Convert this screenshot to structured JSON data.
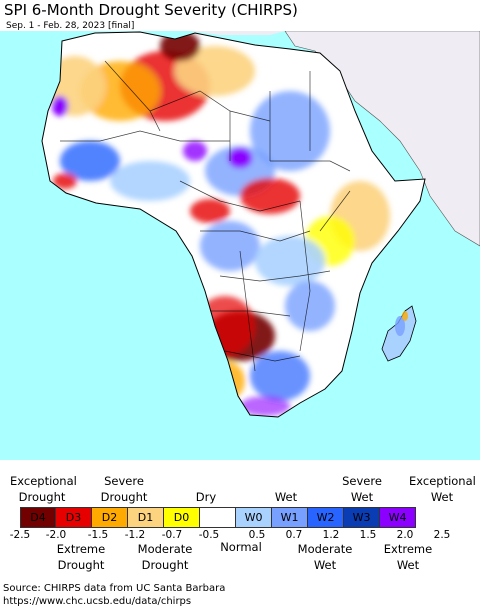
{
  "header": {
    "title": "SPI 6-Month Drought Severity (CHIRPS)",
    "subtitle": "Sep. 1 - Feb. 28, 2023 [final]"
  },
  "map": {
    "region": "Africa",
    "ocean_color": "#aaffff",
    "land_outside_color": "#f0ecf4",
    "no_data_color": "#ffffff"
  },
  "legend": {
    "categories": [
      {
        "code": "D4",
        "color": "#730000"
      },
      {
        "code": "D3",
        "color": "#e60000"
      },
      {
        "code": "D2",
        "color": "#ffaa00"
      },
      {
        "code": "D1",
        "color": "#fcd37f"
      },
      {
        "code": "D0",
        "color": "#ffff00"
      },
      {
        "code": "",
        "color": "#ffffff"
      },
      {
        "code": "W0",
        "color": "#aad2ff"
      },
      {
        "code": "W1",
        "color": "#78a0ff"
      },
      {
        "code": "W2",
        "color": "#2864ff"
      },
      {
        "code": "W3",
        "color": "#0a3cb4"
      },
      {
        "code": "W4",
        "color": "#8c00ff"
      }
    ],
    "top_labels": [
      {
        "line1": "Exceptional",
        "line2": "Drought"
      },
      {
        "line1": "Severe",
        "line2": "Drought"
      },
      {
        "line1": "Dry",
        "line2": ""
      },
      {
        "line1": "Wet",
        "line2": ""
      },
      {
        "line1": "Severe",
        "line2": "Wet"
      },
      {
        "line1": "Exceptional",
        "line2": "Wet"
      }
    ],
    "bottom_labels": [
      {
        "line1": "Extreme",
        "line2": "Drought"
      },
      {
        "line1": "Moderate",
        "line2": "Drought"
      },
      {
        "line1": "Normal",
        "line2": ""
      },
      {
        "line1": "Moderate",
        "line2": "Wet"
      },
      {
        "line1": "Extreme",
        "line2": "Wet"
      }
    ],
    "ticks": [
      "-2.5",
      "-2.0",
      "-1.5",
      "-1.2",
      "-0.7",
      "-0.5",
      "0.5",
      "0.7",
      "1.2",
      "1.5",
      "2.0",
      "2.5"
    ]
  },
  "footer": {
    "source": "Source: CHIRPS data from UC Santa Barbara",
    "url": "https://www.chc.ucsb.edu/data/chirps"
  }
}
